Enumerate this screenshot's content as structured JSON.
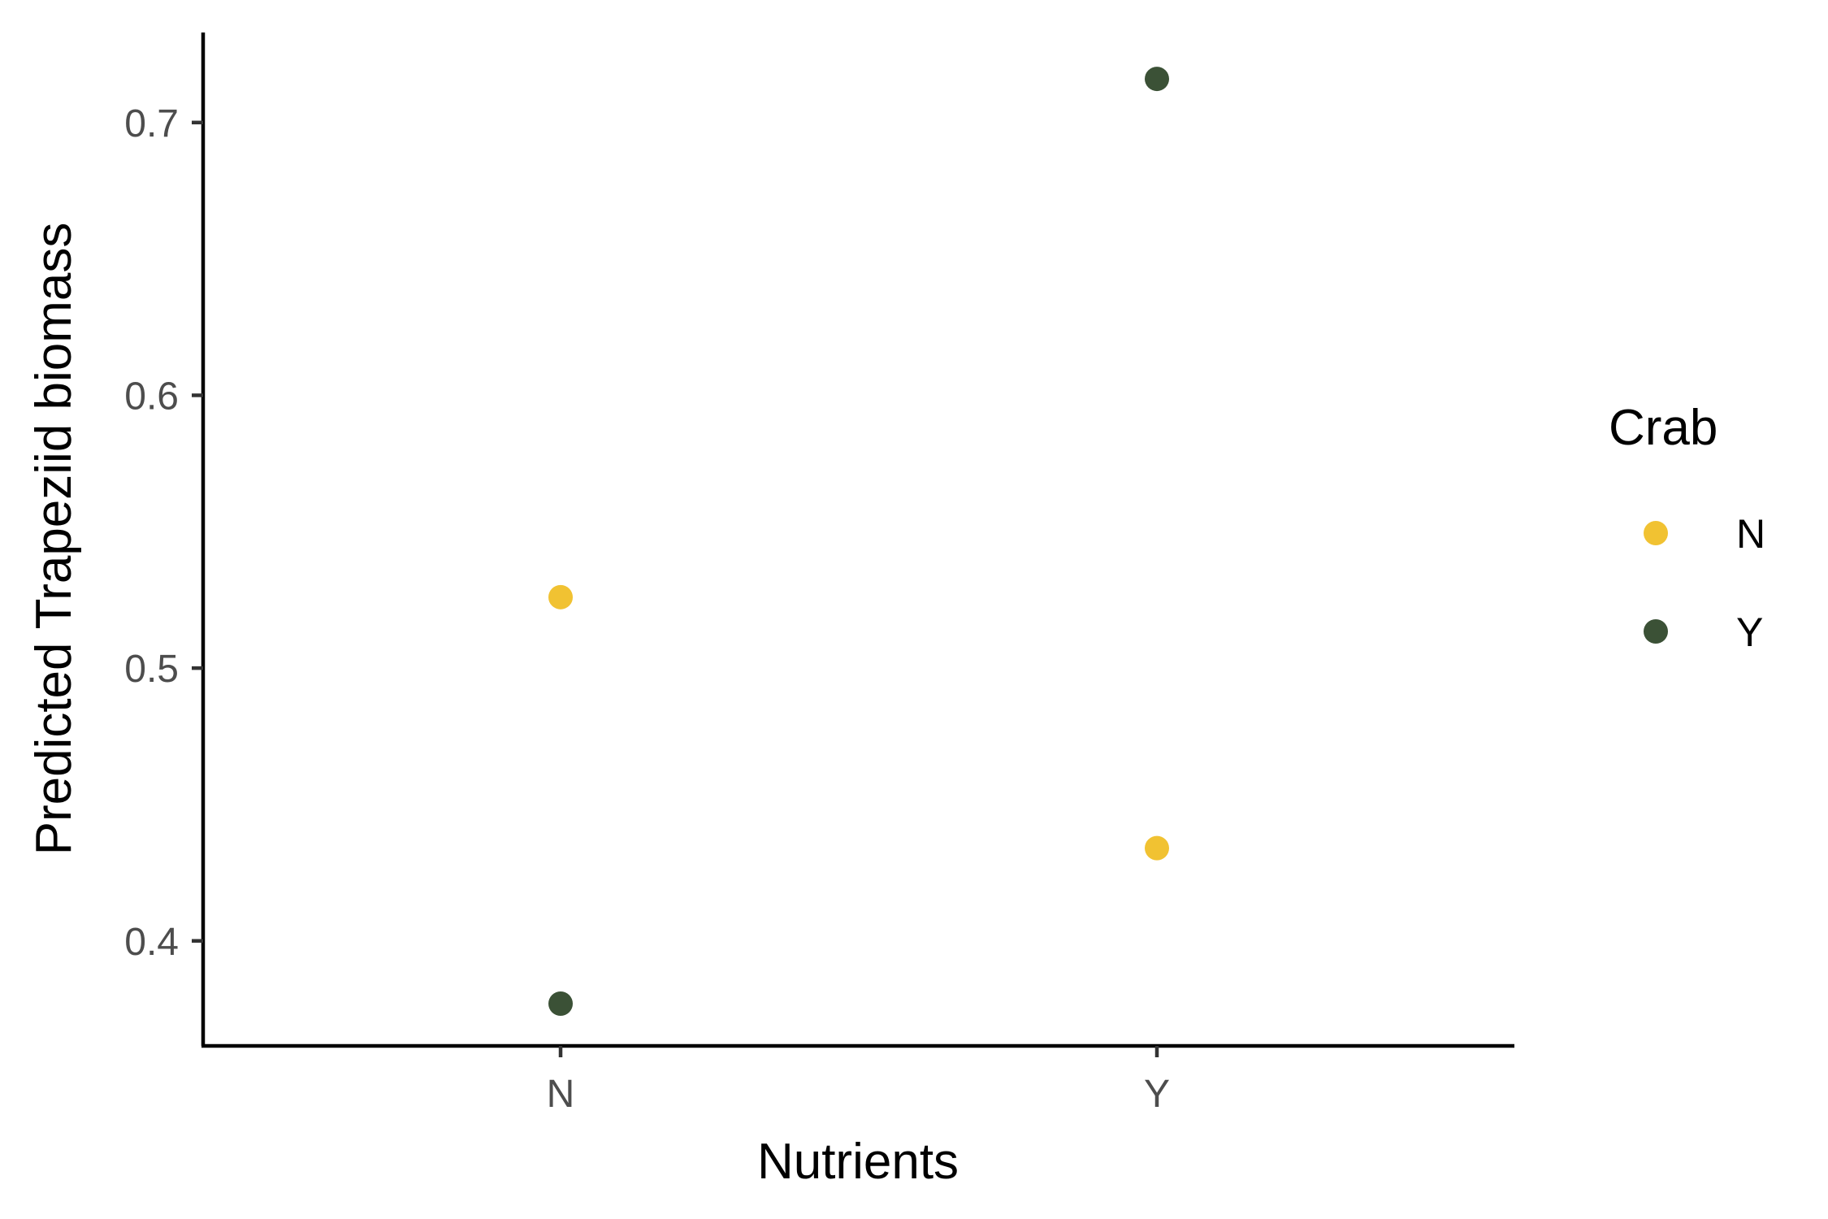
{
  "chart_data": {
    "type": "scatter",
    "title": "",
    "xlabel": "Nutrients",
    "ylabel": "Predicted Trapeziid biomass",
    "categories": [
      "N",
      "Y"
    ],
    "yticks": [
      "0.4",
      "0.5",
      "0.6",
      "0.7"
    ],
    "ylim": [
      0.3615,
      0.733
    ],
    "grid": false,
    "legend": {
      "title": "Crab",
      "placement": "right"
    },
    "series": [
      {
        "name": "N",
        "color": "#F1C232",
        "values": [
          0.526,
          0.434
        ]
      },
      {
        "name": "Y",
        "color": "#3B5136",
        "values": [
          0.377,
          0.716
        ]
      }
    ]
  }
}
